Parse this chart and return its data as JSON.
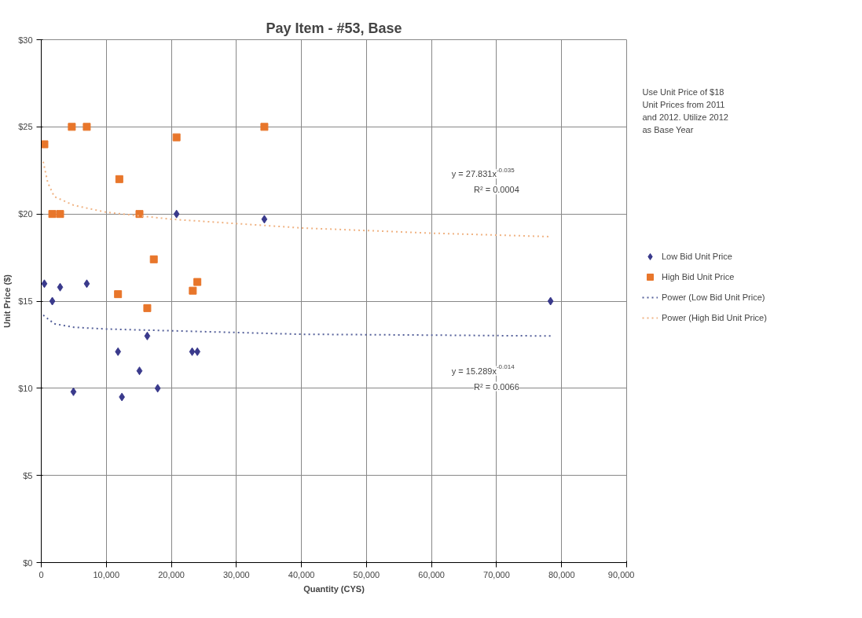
{
  "chart_data": {
    "type": "scatter",
    "title": "Pay Item - #53, Base",
    "xlabel": "Quantity (CYS)",
    "ylabel": "Unit Price ($)",
    "xlim": [
      0,
      90000
    ],
    "ylim": [
      0,
      30
    ],
    "xticks": [
      {
        "value": 0,
        "label": "0"
      },
      {
        "value": 10000,
        "label": "10,000"
      },
      {
        "value": 20000,
        "label": "20,000"
      },
      {
        "value": 30000,
        "label": "30,000"
      },
      {
        "value": 40000,
        "label": "40,000"
      },
      {
        "value": 50000,
        "label": "50,000"
      },
      {
        "value": 60000,
        "label": "60,000"
      },
      {
        "value": 70000,
        "label": "70,000"
      },
      {
        "value": 80000,
        "label": "80,000"
      },
      {
        "value": 90000,
        "label": "90,000"
      }
    ],
    "yticks": [
      {
        "value": 0,
        "label": "$0"
      },
      {
        "value": 5,
        "label": "$5"
      },
      {
        "value": 10,
        "label": "$10"
      },
      {
        "value": 15,
        "label": "$15"
      },
      {
        "value": 20,
        "label": "$20"
      },
      {
        "value": 25,
        "label": "$25"
      },
      {
        "value": 30,
        "label": "$30"
      }
    ],
    "grid": true,
    "legend": "right",
    "series": [
      {
        "name": "Low Bid Unit Price",
        "type": "scatter",
        "marker": "diamond",
        "color": "#3a3a8c",
        "x": [
          480,
          1700,
          2900,
          7000,
          20800,
          34300,
          16300,
          11800,
          23200,
          24000,
          15100,
          4950,
          12400,
          17900,
          78300
        ],
        "values": [
          16.0,
          15.0,
          15.8,
          16.0,
          20.0,
          19.7,
          13.0,
          12.1,
          12.1,
          12.1,
          11.0,
          9.8,
          9.5,
          10.0,
          15.0
        ]
      },
      {
        "name": "High Bid Unit Price",
        "type": "scatter",
        "marker": "square",
        "color": "#e8762b",
        "x": [
          480,
          4700,
          7000,
          20800,
          34300,
          12000,
          1700,
          2900,
          15100,
          17300,
          24000,
          23300,
          11800,
          16300
        ],
        "values": [
          24.0,
          25.0,
          25.0,
          24.4,
          25.0,
          22.0,
          20.0,
          20.0,
          20.0,
          17.4,
          16.1,
          15.6,
          15.4,
          14.6
        ]
      },
      {
        "name": "Power (Low Bid Unit Price)",
        "type": "line",
        "line_style": "dotted",
        "color": "#55609a",
        "x": [
          300,
          2000,
          5000,
          10000,
          20000,
          40000,
          60000,
          78300
        ],
        "values": [
          14.2,
          13.7,
          13.5,
          13.4,
          13.3,
          13.1,
          13.05,
          13.0
        ]
      },
      {
        "name": "Power (High Bid Unit Price)",
        "type": "line",
        "line_style": "dotted",
        "color": "#f0b383",
        "x": [
          300,
          1000,
          2000,
          5000,
          10000,
          20000,
          40000,
          60000,
          78300
        ],
        "values": [
          23.0,
          21.8,
          21.0,
          20.5,
          20.1,
          19.7,
          19.2,
          18.9,
          18.7
        ]
      }
    ],
    "annotations": [
      "Use Unit Price of $18\nUnit Prices from 2011\nand 2012.   Utilize 2012\nas Base Year",
      "y = 27.831x$^{-0.035}$\nR² = 0.0004",
      "y = 15.289x$^{-0.014}$\nR² = 0.0066"
    ]
  }
}
